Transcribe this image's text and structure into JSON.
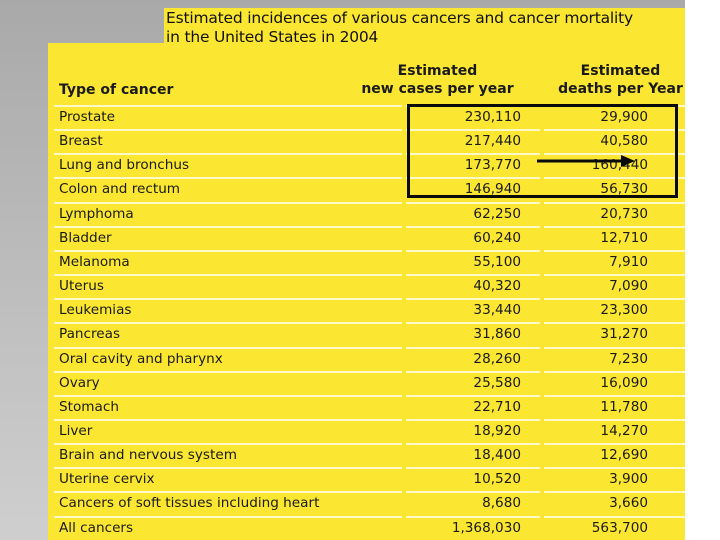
{
  "colors": {
    "panel": "#fbe731",
    "background_gray": "#bcbcbc",
    "rule": "#fff9c8",
    "highlight": "#0a0a0a"
  },
  "title": {
    "line1": "Estimated incidences of various cancers and cancer mortality",
    "line2": "in the United States in 2004"
  },
  "table": {
    "headers": {
      "type": "Type of cancer",
      "cases_line1": "Estimated",
      "cases_line2": "new cases per year",
      "deaths_line1": "Estimated",
      "deaths_line2": "deaths per Year"
    },
    "rows": [
      {
        "type": "Prostate",
        "cases": "230,110",
        "deaths": "29,900"
      },
      {
        "type": "Breast",
        "cases": "217,440",
        "deaths": "40,580"
      },
      {
        "type": "Lung and bronchus",
        "cases": "173,770",
        "deaths": "160,440"
      },
      {
        "type": "Colon and rectum",
        "cases": "146,940",
        "deaths": "56,730"
      },
      {
        "type": "Lymphoma",
        "cases": "62,250",
        "deaths": "20,730"
      },
      {
        "type": "Bladder",
        "cases": "60,240",
        "deaths": "12,710"
      },
      {
        "type": "Melanoma",
        "cases": "55,100",
        "deaths": "7,910"
      },
      {
        "type": "Uterus",
        "cases": "40,320",
        "deaths": "7,090"
      },
      {
        "type": "Leukemias",
        "cases": "33,440",
        "deaths": "23,300"
      },
      {
        "type": "Pancreas",
        "cases": "31,860",
        "deaths": "31,270"
      },
      {
        "type": "Oral cavity and pharynx",
        "cases": "28,260",
        "deaths": "7,230"
      },
      {
        "type": "Ovary",
        "cases": "25,580",
        "deaths": "16,090"
      },
      {
        "type": "Stomach",
        "cases": "22,710",
        "deaths": "11,780"
      },
      {
        "type": "Liver",
        "cases": "18,920",
        "deaths": "14,270"
      },
      {
        "type": "Brain and nervous system",
        "cases": "18,400",
        "deaths": "12,690"
      },
      {
        "type": "Uterine cervix",
        "cases": "10,520",
        "deaths": "3,900"
      },
      {
        "type": "Cancers of soft tissues including heart",
        "cases": "8,680",
        "deaths": "3,660"
      },
      {
        "type": "All cancers",
        "cases": "1,368,030",
        "deaths": "563,700"
      }
    ]
  }
}
